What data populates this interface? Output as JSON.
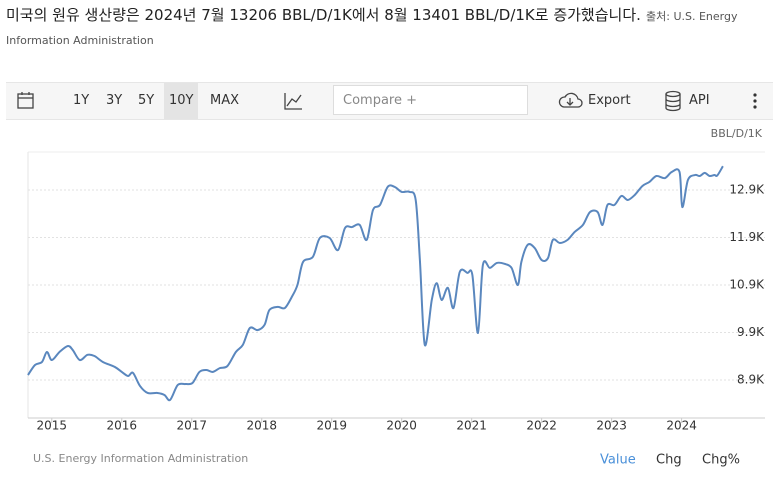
{
  "header": {
    "title": "미국의 원유 생산량은 2024년 7월 13206 BBL/D/1K에서 8월 13401 BBL/D/1K로 증가했습니다.",
    "source": "출처: U.S. Energy Information Administration"
  },
  "toolbar": {
    "ranges": [
      "1Y",
      "3Y",
      "5Y",
      "10Y",
      "MAX"
    ],
    "selected_range": "10Y",
    "compare": "Compare +",
    "export": "Export",
    "api": "API"
  },
  "chart_data": {
    "type": "line",
    "ylabel": "BBL/D/1K",
    "color": "#5a87be",
    "grid": true,
    "x": [
      2014.66,
      2014.76,
      2014.86,
      2014.93,
      2015,
      2015.11,
      2015.23,
      2015.3,
      2015.4,
      2015.51,
      2015.61,
      2015.73,
      2015.9,
      2016,
      2016.09,
      2016.16,
      2016.26,
      2016.37,
      2016.51,
      2016.61,
      2016.69,
      2016.8,
      2016.91,
      2017.01,
      2017.11,
      2017.21,
      2017.3,
      2017.4,
      2017.51,
      2017.63,
      2017.73,
      2017.83,
      2017.94,
      2018.04,
      2018.11,
      2018.23,
      2018.33,
      2018.43,
      2018.51,
      2018.59,
      2018.73,
      2018.83,
      2018.97,
      2019.09,
      2019.19,
      2019.29,
      2019.4,
      2019.5,
      2019.59,
      2019.69,
      2019.8,
      2019.9,
      2020,
      2020.11,
      2020.2,
      2020.26,
      2020.33,
      2020.43,
      2020.5,
      2020.57,
      2020.66,
      2020.74,
      2020.83,
      2020.94,
      2021.01,
      2021.09,
      2021.16,
      2021.26,
      2021.36,
      2021.47,
      2021.57,
      2021.66,
      2021.71,
      2021.8,
      2021.9,
      2022,
      2022.09,
      2022.16,
      2022.26,
      2022.37,
      2022.47,
      2022.59,
      2022.69,
      2022.8,
      2022.87,
      2022.94,
      2023.04,
      2023.14,
      2023.23,
      2023.33,
      2023.44,
      2023.54,
      2023.64,
      2023.76,
      2023.86,
      2023.97,
      2024.01,
      2024.09,
      2024.19,
      2024.26,
      2024.33,
      2024.4,
      2024.47,
      2024.51,
      2024.59
    ],
    "values": [
      9005,
      9216,
      9280,
      9490,
      9320,
      9490,
      9616,
      9530,
      9320,
      9430,
      9405,
      9280,
      9175,
      9070,
      8985,
      9050,
      8775,
      8627,
      8627,
      8585,
      8480,
      8795,
      8815,
      8836,
      9070,
      9110,
      9070,
      9150,
      9195,
      9490,
      9640,
      9995,
      9950,
      10060,
      10375,
      10440,
      10415,
      10650,
      10900,
      11385,
      11490,
      11890,
      11890,
      11635,
      12100,
      12120,
      12165,
      11850,
      12480,
      12585,
      12965,
      12965,
      12860,
      12860,
      12690,
      11425,
      9640,
      10585,
      10940,
      10585,
      10840,
      10415,
      11175,
      11155,
      11110,
      9890,
      11320,
      11260,
      11365,
      11345,
      11260,
      10900,
      11385,
      11745,
      11680,
      11425,
      11465,
      11850,
      11785,
      11850,
      12015,
      12165,
      12435,
      12435,
      12165,
      12585,
      12585,
      12775,
      12690,
      12795,
      12985,
      13070,
      13195,
      13150,
      13280,
      13280,
      12540,
      13110,
      13215,
      13195,
      13260,
      13195,
      13215,
      13206,
      13401
    ],
    "xlim": [
      2014.66,
      2024.62
    ],
    "xticks": [
      2015,
      2016,
      2017,
      2018,
      2019,
      2020,
      2021,
      2022,
      2023,
      2024
    ],
    "ylim": [
      8100,
      13700
    ],
    "yticks": [
      {
        "value": 8900,
        "label": "8.9K"
      },
      {
        "value": 9900,
        "label": "9.9K"
      },
      {
        "value": 10900,
        "label": "10.9K"
      },
      {
        "value": 11900,
        "label": "11.9K"
      },
      {
        "value": 12900,
        "label": "12.9K"
      }
    ]
  },
  "footer": {
    "source": "U.S. Energy Information Administration",
    "tabs": [
      "Value",
      "Chg",
      "Chg%"
    ],
    "selected_tab": "Value"
  }
}
